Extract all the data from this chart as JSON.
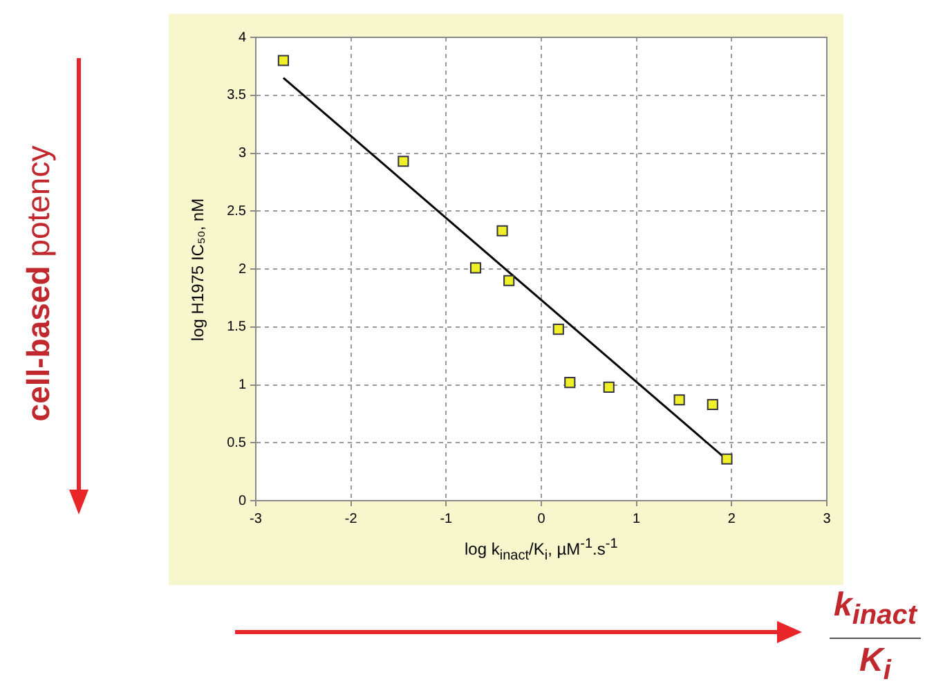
{
  "chart_data": {
    "type": "scatter",
    "xlabel": "log k$_{inact}$/K$_{i}$, µM$^{-1}$.s$^{-1}$",
    "ylabel": "log H1975 IC₅₀, nM",
    "xlim": [
      -3,
      3
    ],
    "xticks": [
      -3,
      -2,
      -1,
      0,
      1,
      2,
      3
    ],
    "ylim": [
      0,
      4
    ],
    "yticks": [
      0,
      0.5,
      1,
      1.5,
      2,
      2.5,
      3,
      3.5,
      4
    ],
    "grid": true,
    "marker": "square",
    "series": [
      {
        "color": "#f0f028",
        "x": [
          -2.71,
          -1.45,
          -0.41,
          -0.69,
          -0.34,
          0.18,
          0.3,
          0.71,
          1.45,
          1.8,
          1.95
        ],
        "values": [
          3.8,
          2.93,
          2.33,
          2.01,
          1.9,
          1.48,
          1.02,
          0.98,
          0.87,
          0.83,
          0.36
        ]
      },
      {
        "type": "line",
        "color": "#000000",
        "marker": "none",
        "line_style": "solid",
        "x": [
          -2.71,
          1.94
        ],
        "values": [
          3.65,
          0.36
        ]
      }
    ],
    "annotations": [
      "cell-based",
      "potency",
      "k$_{inact}$",
      "K$_{i}$"
    ]
  }
}
